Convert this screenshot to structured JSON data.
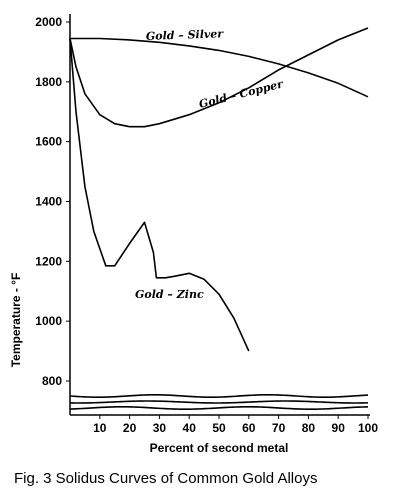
{
  "caption": "Fig. 3 Solidus Curves of Common Gold Alloys",
  "chart_data": {
    "type": "line",
    "title": "",
    "xlabel": "Percent of second metal",
    "ylabel": "Temperature - °F",
    "xlim": [
      0,
      100
    ],
    "ylim": [
      700,
      2000
    ],
    "axis_break": true,
    "grid": false,
    "x_ticks": [
      10,
      20,
      30,
      40,
      50,
      60,
      70,
      80,
      90,
      100
    ],
    "y_ticks": [
      800,
      1000,
      1200,
      1400,
      1600,
      1800,
      2000
    ],
    "series": [
      {
        "name": "Gold-Silver",
        "x": [
          0,
          10,
          20,
          30,
          40,
          50,
          60,
          70,
          80,
          90,
          100
        ],
        "y": [
          1945,
          1945,
          1940,
          1932,
          1920,
          1905,
          1885,
          1860,
          1830,
          1795,
          1750
        ]
      },
      {
        "name": "Gold-Copper",
        "x": [
          0,
          2,
          5,
          10,
          15,
          20,
          25,
          30,
          40,
          50,
          60,
          70,
          80,
          90,
          100
        ],
        "y": [
          1945,
          1850,
          1760,
          1690,
          1660,
          1650,
          1650,
          1660,
          1690,
          1730,
          1780,
          1840,
          1890,
          1940,
          1980
        ]
      },
      {
        "name": "Gold-Zinc",
        "x": [
          0,
          2,
          5,
          8,
          12,
          15,
          20,
          25,
          28,
          29,
          32,
          35,
          40,
          45,
          50,
          55,
          60
        ],
        "y": [
          1945,
          1700,
          1450,
          1300,
          1185,
          1185,
          1260,
          1330,
          1230,
          1145,
          1145,
          1150,
          1160,
          1140,
          1090,
          1010,
          900
        ]
      }
    ]
  }
}
